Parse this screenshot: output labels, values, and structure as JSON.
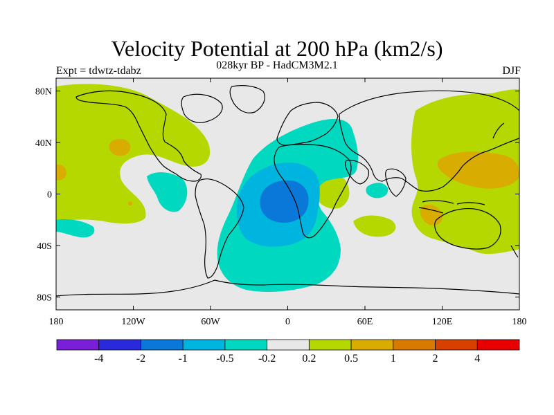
{
  "header": {
    "title": "Velocity Potential at 200 hPa (km2/s)",
    "subtitle": "028kyr BP - HadCM3M2.1",
    "experiment": "Expt = tdwtz-tdabz",
    "season": "DJF"
  },
  "map": {
    "projection": "equirectangular",
    "lon_range": [
      -180,
      180
    ],
    "lat_range": [
      -90,
      90
    ],
    "background_color": "#e8e8e8",
    "coastline_color": "#000000",
    "x_tick_labels": [
      "180",
      "120W",
      "60W",
      "0",
      "60E",
      "120E",
      "180"
    ],
    "x_tick_values": [
      -180,
      -120,
      -60,
      0,
      60,
      120,
      180
    ],
    "y_tick_labels": [
      "80N",
      "40N",
      "0",
      "40S",
      "80S"
    ],
    "y_tick_values": [
      80,
      40,
      0,
      -40,
      -80
    ]
  },
  "colorbar": {
    "colors": [
      "#7a1fd8",
      "#2a2adb",
      "#0a78d8",
      "#00b4e0",
      "#00d8c0",
      "#e8e8e8",
      "#b4d800",
      "#d8ac00",
      "#d87a00",
      "#d84000",
      "#e80000"
    ],
    "labels": [
      "-4",
      "-2",
      "-1",
      "-0.5",
      "-0.2",
      "0.2",
      "0.5",
      "1",
      "2",
      "4"
    ]
  },
  "legend_levels": [
    {
      "value": -1,
      "color": "#0a78d8"
    },
    {
      "value": -0.5,
      "color": "#00b4e0"
    },
    {
      "value": -0.2,
      "color": "#00d8c0"
    },
    {
      "value": 0.2,
      "color": "#b4d800"
    },
    {
      "value": 0.5,
      "color": "#d8ac00"
    }
  ]
}
